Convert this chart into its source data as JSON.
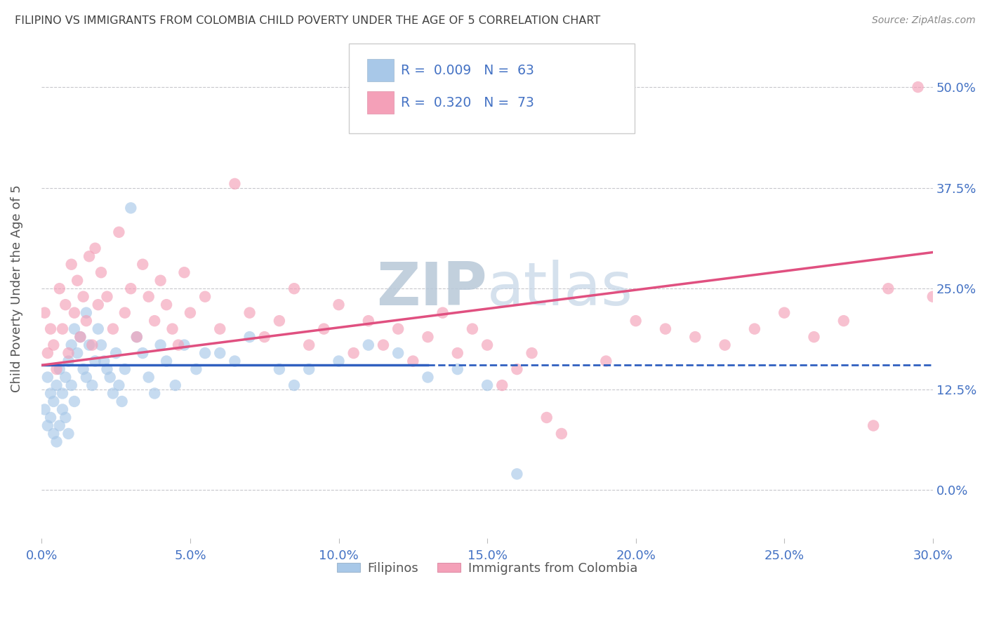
{
  "title": "FILIPINO VS IMMIGRANTS FROM COLOMBIA CHILD POVERTY UNDER THE AGE OF 5 CORRELATION CHART",
  "source": "Source: ZipAtlas.com",
  "xlabel_ticks": [
    "0.0%",
    "5.0%",
    "10.0%",
    "15.0%",
    "20.0%",
    "25.0%",
    "30.0%"
  ],
  "ylabel_ticks": [
    "0.0%",
    "12.5%",
    "25.0%",
    "37.5%",
    "50.0%"
  ],
  "ylabel_label": "Child Poverty Under the Age of 5",
  "xmin": 0.0,
  "xmax": 0.3,
  "ymin": -0.06,
  "ymax": 0.56,
  "legend1_r": "0.009",
  "legend1_n": "63",
  "legend2_r": "0.320",
  "legend2_n": "73",
  "filipinos_color": "#a8c8e8",
  "colombia_color": "#f4a0b8",
  "trendline1_color": "#3060c0",
  "trendline2_color": "#e05080",
  "watermark_zip": "ZIP",
  "watermark_atlas": "atlas",
  "watermark_color": "#ccd8e8",
  "background_color": "#ffffff",
  "grid_color": "#c8c8cc",
  "axis_label_color": "#4472c4",
  "title_color": "#404040",
  "filipinos_x": [
    0.001,
    0.002,
    0.002,
    0.003,
    0.003,
    0.004,
    0.004,
    0.005,
    0.005,
    0.006,
    0.006,
    0.007,
    0.007,
    0.008,
    0.008,
    0.009,
    0.009,
    0.01,
    0.01,
    0.011,
    0.011,
    0.012,
    0.013,
    0.014,
    0.015,
    0.015,
    0.016,
    0.017,
    0.018,
    0.019,
    0.02,
    0.021,
    0.022,
    0.023,
    0.024,
    0.025,
    0.026,
    0.027,
    0.028,
    0.03,
    0.032,
    0.034,
    0.036,
    0.038,
    0.04,
    0.042,
    0.045,
    0.048,
    0.052,
    0.055,
    0.06,
    0.065,
    0.07,
    0.08,
    0.085,
    0.09,
    0.1,
    0.11,
    0.12,
    0.13,
    0.14,
    0.15,
    0.16
  ],
  "filipinos_y": [
    0.1,
    0.14,
    0.08,
    0.12,
    0.09,
    0.11,
    0.07,
    0.13,
    0.06,
    0.15,
    0.08,
    0.12,
    0.1,
    0.14,
    0.09,
    0.16,
    0.07,
    0.13,
    0.18,
    0.11,
    0.2,
    0.17,
    0.19,
    0.15,
    0.22,
    0.14,
    0.18,
    0.13,
    0.16,
    0.2,
    0.18,
    0.16,
    0.15,
    0.14,
    0.12,
    0.17,
    0.13,
    0.11,
    0.15,
    0.35,
    0.19,
    0.17,
    0.14,
    0.12,
    0.18,
    0.16,
    0.13,
    0.18,
    0.15,
    0.17,
    0.17,
    0.16,
    0.19,
    0.15,
    0.13,
    0.15,
    0.16,
    0.18,
    0.17,
    0.14,
    0.15,
    0.13,
    0.02
  ],
  "colombia_x": [
    0.001,
    0.002,
    0.003,
    0.004,
    0.005,
    0.006,
    0.007,
    0.008,
    0.009,
    0.01,
    0.011,
    0.012,
    0.013,
    0.014,
    0.015,
    0.016,
    0.017,
    0.018,
    0.019,
    0.02,
    0.022,
    0.024,
    0.026,
    0.028,
    0.03,
    0.032,
    0.034,
    0.036,
    0.038,
    0.04,
    0.042,
    0.044,
    0.046,
    0.048,
    0.05,
    0.055,
    0.06,
    0.065,
    0.07,
    0.075,
    0.08,
    0.085,
    0.09,
    0.095,
    0.1,
    0.105,
    0.11,
    0.115,
    0.12,
    0.125,
    0.13,
    0.135,
    0.14,
    0.145,
    0.15,
    0.155,
    0.16,
    0.165,
    0.17,
    0.175,
    0.19,
    0.2,
    0.21,
    0.22,
    0.23,
    0.24,
    0.25,
    0.26,
    0.27,
    0.28,
    0.285,
    0.295,
    0.3
  ],
  "colombia_y": [
    0.22,
    0.17,
    0.2,
    0.18,
    0.15,
    0.25,
    0.2,
    0.23,
    0.17,
    0.28,
    0.22,
    0.26,
    0.19,
    0.24,
    0.21,
    0.29,
    0.18,
    0.3,
    0.23,
    0.27,
    0.24,
    0.2,
    0.32,
    0.22,
    0.25,
    0.19,
    0.28,
    0.24,
    0.21,
    0.26,
    0.23,
    0.2,
    0.18,
    0.27,
    0.22,
    0.24,
    0.2,
    0.38,
    0.22,
    0.19,
    0.21,
    0.25,
    0.18,
    0.2,
    0.23,
    0.17,
    0.21,
    0.18,
    0.2,
    0.16,
    0.19,
    0.22,
    0.17,
    0.2,
    0.18,
    0.13,
    0.15,
    0.17,
    0.09,
    0.07,
    0.16,
    0.21,
    0.2,
    0.19,
    0.18,
    0.2,
    0.22,
    0.19,
    0.21,
    0.08,
    0.25,
    0.5,
    0.24
  ],
  "trendline1_x": [
    0.0,
    0.3
  ],
  "trendline1_y": [
    0.155,
    0.155
  ],
  "trendline1_solid_end": 0.13,
  "trendline2_x": [
    0.0,
    0.3
  ],
  "trendline2_y": [
    0.155,
    0.295
  ]
}
